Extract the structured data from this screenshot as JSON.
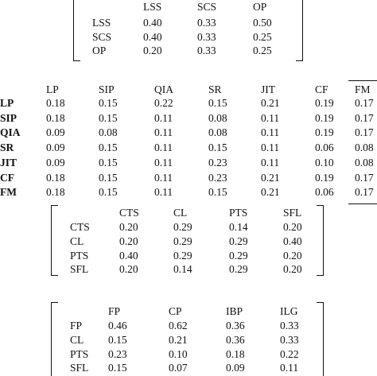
{
  "matrix1": {
    "columns": [
      "LSS",
      "SCS",
      "OP"
    ],
    "rows": [
      {
        "label": "LSS",
        "values": [
          "0.40",
          "0.33",
          "0.50"
        ]
      },
      {
        "label": "SCS",
        "values": [
          "0.40",
          "0.33",
          "0.25"
        ]
      },
      {
        "label": "OP",
        "values": [
          "0.20",
          "0.33",
          "0.25"
        ]
      }
    ]
  },
  "matrix2": {
    "columns": [
      "LP",
      "SIP",
      "QIA",
      "SR",
      "JIT",
      "CF",
      "FM"
    ],
    "rows": [
      {
        "label": "LP",
        "values": [
          "0.18",
          "0.15",
          "0.22",
          "0.15",
          "0.21",
          "0.19",
          "0.17"
        ]
      },
      {
        "label": "SIP",
        "values": [
          "0.18",
          "0.15",
          "0.11",
          "0.08",
          "0.11",
          "0.19",
          "0.17"
        ]
      },
      {
        "label": "QIA",
        "values": [
          "0.09",
          "0.08",
          "0.11",
          "0.08",
          "0.11",
          "0.19",
          "0.17"
        ]
      },
      {
        "label": "SR",
        "values": [
          "0.09",
          "0.15",
          "0.11",
          "0.15",
          "0.11",
          "0.06",
          "0.08"
        ]
      },
      {
        "label": "JIT",
        "values": [
          "0.09",
          "0.15",
          "0.11",
          "0.23",
          "0.11",
          "0.10",
          "0.08"
        ]
      },
      {
        "label": "CF",
        "values": [
          "0.18",
          "0.15",
          "0.11",
          "0.23",
          "0.21",
          "0.19",
          "0.17"
        ]
      },
      {
        "label": "FM",
        "values": [
          "0.18",
          "0.15",
          "0.11",
          "0.15",
          "0.21",
          "0.06",
          "0.17"
        ]
      }
    ]
  },
  "matrix3": {
    "columns": [
      "CTS",
      "CL",
      "PTS",
      "SFL"
    ],
    "rows": [
      {
        "label": "CTS",
        "values": [
          "0.20",
          "0.29",
          "0.14",
          "0.20"
        ]
      },
      {
        "label": "CL",
        "values": [
          "0.20",
          "0.29",
          "0.29",
          "0.40"
        ]
      },
      {
        "label": "PTS",
        "values": [
          "0.40",
          "0.29",
          "0.29",
          "0.20"
        ]
      },
      {
        "label": "SFL",
        "values": [
          "0.20",
          "0.14",
          "0.29",
          "0.20"
        ]
      }
    ]
  },
  "matrix4": {
    "columns": [
      "FP",
      "CP",
      "IBP",
      "ILG"
    ],
    "rows": [
      {
        "label": "FP",
        "values": [
          "0.46",
          "0.62",
          "0.36",
          "0.33"
        ]
      },
      {
        "label": "CL",
        "values": [
          "0.15",
          "0.21",
          "0.36",
          "0.33"
        ]
      },
      {
        "label": "PTS",
        "values": [
          "0.23",
          "0.10",
          "0.18",
          "0.22"
        ]
      },
      {
        "label": "SFL",
        "values": [
          "0.15",
          "0.07",
          "0.09",
          "0.11"
        ]
      }
    ]
  }
}
